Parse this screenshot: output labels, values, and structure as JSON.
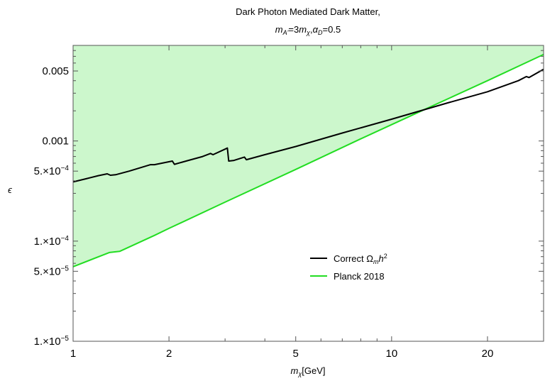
{
  "chart_data": {
    "type": "line",
    "title_line1": "Dark Photon Mediated Dark Matter,",
    "title_line2": {
      "m1": "m",
      "s1": "A'",
      "t1": "=3",
      "m2": "m",
      "s2": "χ",
      "t2": ",",
      "m3": "α",
      "s3": "D",
      "t3": "=0.5"
    },
    "xlabel": {
      "main": "m",
      "sub": "χ",
      "rest": "[GeV]"
    },
    "ylabel": "ϵ",
    "xscale": "log",
    "yscale": "log",
    "xlim": [
      1,
      30
    ],
    "ylim": [
      1e-05,
      0.009
    ],
    "x_ticks": [
      {
        "value": 1,
        "label": "1"
      },
      {
        "value": 2,
        "label": "2"
      },
      {
        "value": 5,
        "label": "5"
      },
      {
        "value": 10,
        "label": "10"
      },
      {
        "value": 20,
        "label": "20"
      }
    ],
    "y_ticks": [
      {
        "value": 1e-05,
        "mant": "1.×10",
        "exp": "−5"
      },
      {
        "value": 5e-05,
        "mant": "5.×10",
        "exp": "−5"
      },
      {
        "value": 0.0001,
        "mant": "1.×10",
        "exp": "−4"
      },
      {
        "value": 0.0005,
        "mant": "5.×10",
        "exp": "−4"
      },
      {
        "value": 0.001,
        "text": "0.001"
      },
      {
        "value": 0.005,
        "text": "0.005"
      }
    ],
    "series": [
      {
        "name": "Correct Ω_m h^2",
        "legend": {
          "a": "Correct Ω",
          "b": "m",
          "c": "h",
          "d": "2"
        },
        "color": "#000000",
        "points": [
          [
            1.0,
            0.00039
          ],
          [
            1.1,
            0.00042
          ],
          [
            1.2,
            0.00045
          ],
          [
            1.28,
            0.00047
          ],
          [
            1.31,
            0.000455
          ],
          [
            1.36,
            0.00046
          ],
          [
            1.5,
            0.0005
          ],
          [
            1.75,
            0.00058
          ],
          [
            1.8,
            0.00058
          ],
          [
            2.05,
            0.00063
          ],
          [
            2.08,
            0.000585
          ],
          [
            2.3,
            0.00064
          ],
          [
            2.55,
            0.0007
          ],
          [
            2.7,
            0.00075
          ],
          [
            2.75,
            0.00073
          ],
          [
            3.05,
            0.00085
          ],
          [
            3.08,
            0.00063
          ],
          [
            3.2,
            0.00064
          ],
          [
            3.45,
            0.00069
          ],
          [
            3.5,
            0.00065
          ],
          [
            4.0,
            0.00073
          ],
          [
            5.0,
            0.00088
          ],
          [
            7.0,
            0.0012
          ],
          [
            10.0,
            0.00165
          ],
          [
            15.0,
            0.0024
          ],
          [
            20.0,
            0.0031
          ],
          [
            25.0,
            0.004
          ],
          [
            26.5,
            0.0044
          ],
          [
            27.0,
            0.0043
          ],
          [
            30.0,
            0.0052
          ]
        ]
      },
      {
        "name": "Planck 2018",
        "legend": {
          "a": "Planck 2018"
        },
        "color": "#22dd22",
        "fill_color": "#ccf7cc",
        "fill": "above",
        "points": [
          [
            1.0,
            5.55e-05
          ],
          [
            1.3,
            7.7e-05
          ],
          [
            1.4,
            7.9e-05
          ],
          [
            1.8,
            0.000114
          ],
          [
            2.0,
            0.000134
          ],
          [
            3.0,
            0.000245
          ],
          [
            5.0,
            0.00052
          ],
          [
            8.0,
            0.00105
          ],
          [
            12.0,
            0.0019
          ],
          [
            20.0,
            0.004
          ],
          [
            30.0,
            0.0073
          ]
        ]
      }
    ],
    "grid": false,
    "legend_position": "center-right"
  }
}
